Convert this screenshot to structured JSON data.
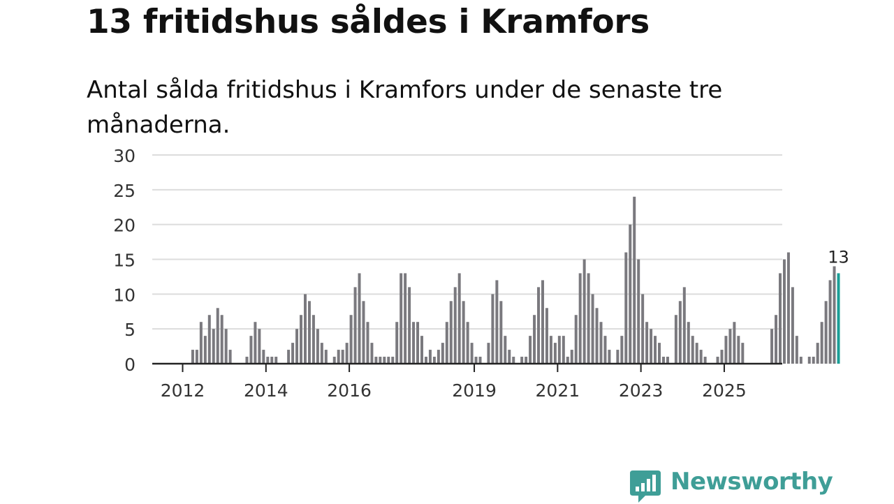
{
  "title": "13 fritidshus såldes i Kramfors",
  "subtitle": "Antal sålda fritidshus i Kramfors under de senaste tre månaderna.",
  "logo": {
    "text": "Newsworthy",
    "color": "#3f9e97"
  },
  "chart_data": {
    "type": "bar",
    "title": "13 fritidshus såldes i Kramfors",
    "subtitle": "Antal sålda fritidshus i Kramfors under de senaste tre månaderna.",
    "xlabel": "",
    "ylabel": "",
    "ylim": [
      0,
      30
    ],
    "yticks": [
      0,
      5,
      10,
      15,
      20,
      25,
      30
    ],
    "grid": true,
    "legend": "none",
    "bar_color": "#7a797e",
    "highlight_color": "#1a9e96",
    "x_start": "2012-01",
    "frequency": "monthly",
    "x_tick_labels": [
      {
        "label": "2012",
        "index": 0
      },
      {
        "label": "2014",
        "index": 20
      },
      {
        "label": "2016",
        "index": 40
      },
      {
        "label": "2019",
        "index": 70
      },
      {
        "label": "2021",
        "index": 90
      },
      {
        "label": "2023",
        "index": 110
      },
      {
        "label": "2025",
        "index": 130
      }
    ],
    "values": [
      0,
      0,
      2,
      2,
      6,
      4,
      7,
      5,
      8,
      7,
      5,
      2,
      0,
      0,
      0,
      1,
      4,
      6,
      5,
      2,
      1,
      1,
      1,
      0,
      0,
      2,
      3,
      5,
      7,
      10,
      9,
      7,
      5,
      3,
      2,
      0,
      1,
      2,
      2,
      3,
      7,
      11,
      13,
      9,
      6,
      3,
      1,
      1,
      1,
      1,
      1,
      6,
      13,
      13,
      11,
      6,
      6,
      4,
      1,
      2,
      1,
      2,
      3,
      6,
      9,
      11,
      13,
      9,
      6,
      3,
      1,
      1,
      0,
      3,
      10,
      12,
      9,
      4,
      2,
      1,
      0,
      1,
      1,
      4,
      7,
      11,
      12,
      8,
      4,
      3,
      4,
      4,
      1,
      2,
      7,
      13,
      15,
      13,
      10,
      8,
      6,
      4,
      2,
      0,
      2,
      4,
      16,
      20,
      24,
      15,
      10,
      6,
      5,
      4,
      3,
      1,
      1,
      0,
      7,
      9,
      11,
      6,
      4,
      3,
      2,
      1,
      0,
      0,
      1,
      2,
      4,
      5,
      6,
      4,
      3,
      0,
      0,
      0,
      0,
      0,
      0,
      5,
      7,
      13,
      15,
      16,
      11,
      4,
      1,
      0,
      1,
      1,
      3,
      6,
      9,
      12,
      14,
      13
    ],
    "annotations": [
      {
        "index": 157,
        "text": "13"
      }
    ]
  }
}
